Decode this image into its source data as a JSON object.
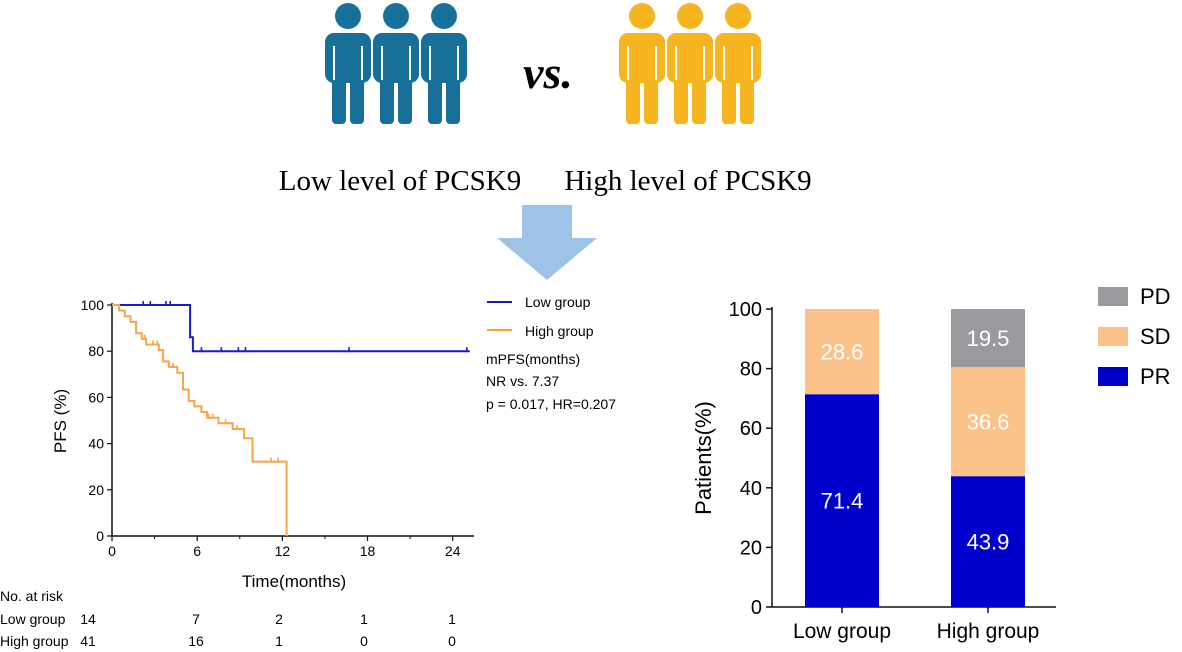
{
  "header": {
    "low_label": "Low level of PCSK9",
    "high_label": "High level of PCSK9",
    "vs_text": "vs.",
    "low_color": "#17709a",
    "high_color": "#f6b51e",
    "arrow_color": "#9dc4e6"
  },
  "chart_data": [
    {
      "type": "line",
      "subtype": "kaplan-meier",
      "title": "",
      "xlabel": "Time(months)",
      "ylabel": "PFS (%)",
      "xlim": [
        0,
        25.5
      ],
      "ylim": [
        0,
        100
      ],
      "xticks": [
        "0",
        "6",
        "12",
        "18",
        "24"
      ],
      "yticks": [
        "0",
        "20",
        "40",
        "60",
        "80",
        "100"
      ],
      "legend_position": "top-right",
      "series": [
        {
          "name": "Low group",
          "color": "#1a1acc",
          "steps": [
            [
              0,
              100
            ],
            [
              5.5,
              100
            ],
            [
              5.5,
              86
            ],
            [
              5.7,
              86
            ],
            [
              5.7,
              80
            ],
            [
              25.2,
              80
            ]
          ],
          "censored": [
            [
              2.2,
              100
            ],
            [
              2.7,
              100
            ],
            [
              3.8,
              100
            ],
            [
              4.1,
              100
            ],
            [
              6.3,
              80
            ],
            [
              7.7,
              80
            ],
            [
              8.9,
              80
            ],
            [
              9.4,
              80
            ],
            [
              16.7,
              80
            ],
            [
              25.0,
              80
            ]
          ]
        },
        {
          "name": "High group",
          "color": "#f7a44a",
          "steps": [
            [
              0,
              100
            ],
            [
              0.5,
              100
            ],
            [
              0.5,
              97.6
            ],
            [
              0.9,
              97.6
            ],
            [
              0.9,
              95.1
            ],
            [
              1.3,
              95.1
            ],
            [
              1.3,
              92.7
            ],
            [
              1.7,
              92.7
            ],
            [
              1.7,
              87.8
            ],
            [
              2.1,
              87.8
            ],
            [
              2.1,
              85.4
            ],
            [
              2.4,
              85.4
            ],
            [
              2.4,
              82.9
            ],
            [
              3.3,
              82.9
            ],
            [
              3.3,
              80.5
            ],
            [
              3.6,
              80.5
            ],
            [
              3.6,
              75.6
            ],
            [
              4.0,
              75.6
            ],
            [
              4.0,
              73.2
            ],
            [
              4.6,
              73.2
            ],
            [
              4.6,
              70.7
            ],
            [
              5.0,
              70.7
            ],
            [
              5.0,
              63.4
            ],
            [
              5.4,
              63.4
            ],
            [
              5.4,
              58.5
            ],
            [
              5.8,
              58.5
            ],
            [
              5.8,
              56.1
            ],
            [
              6.3,
              56.1
            ],
            [
              6.3,
              53.7
            ],
            [
              6.7,
              53.7
            ],
            [
              6.7,
              51.2
            ],
            [
              7.5,
              51.2
            ],
            [
              7.5,
              48.8
            ],
            [
              8.5,
              48.8
            ],
            [
              8.5,
              46.3
            ],
            [
              9.3,
              46.3
            ],
            [
              9.3,
              42.3
            ],
            [
              9.9,
              42.3
            ],
            [
              9.9,
              32.2
            ],
            [
              12.3,
              32.2
            ],
            [
              12.3,
              0
            ]
          ],
          "censored": [
            [
              2.3,
              85.4
            ],
            [
              2.9,
              82.9
            ],
            [
              3.2,
              82.9
            ],
            [
              4.3,
              73.2
            ],
            [
              6.8,
              51.2
            ],
            [
              7.1,
              51.2
            ],
            [
              8.0,
              48.8
            ],
            [
              8.8,
              46.3
            ],
            [
              11.2,
              32.2
            ],
            [
              11.7,
              32.2
            ]
          ]
        }
      ],
      "annotations": [
        "mPFS(months)",
        "NR vs. 7.37",
        "p = 0.017, HR=0.207"
      ],
      "risk_table": {
        "title": "No. at risk",
        "rows": [
          {
            "name": "Low group",
            "values": [
              "14",
              "7",
              "2",
              "1",
              "1"
            ]
          },
          {
            "name": "High group",
            "values": [
              "41",
              "16",
              "1",
              "0",
              "0"
            ]
          }
        ]
      }
    },
    {
      "type": "bar",
      "subtype": "stacked-percent",
      "title": "",
      "xlabel": "",
      "ylabel": "Patients(%)",
      "ylim": [
        0,
        100
      ],
      "yticks": [
        "0",
        "20",
        "40",
        "60",
        "80",
        "100"
      ],
      "categories": [
        "Low group",
        "High group"
      ],
      "legend_position": "top-right",
      "series": [
        {
          "name": "PR",
          "color": "#0000cc",
          "values": [
            71.4,
            43.9
          ]
        },
        {
          "name": "SD",
          "color": "#fbc28a",
          "values": [
            28.6,
            36.6
          ]
        },
        {
          "name": "PD",
          "color": "#9a9a9e",
          "values": [
            0,
            19.5
          ]
        }
      ],
      "value_labels": [
        [
          "71.4",
          "43.9"
        ],
        [
          "28.6",
          "36.6"
        ],
        [
          "",
          "19.5"
        ]
      ]
    }
  ]
}
